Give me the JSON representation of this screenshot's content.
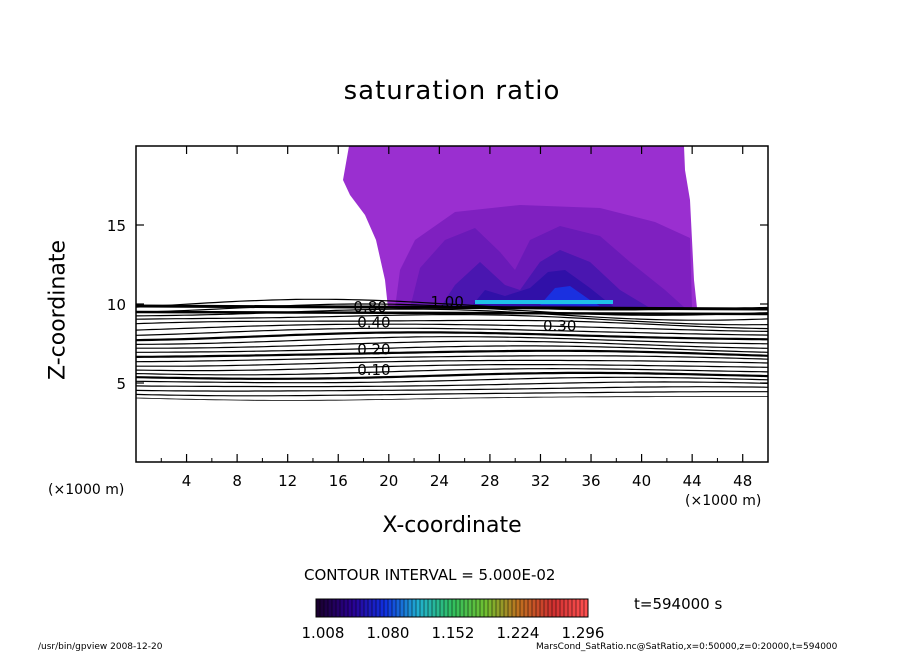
{
  "chart_data": {
    "type": "contour",
    "title": "saturation ratio",
    "xlabel": "X-coordinate",
    "ylabel": "Z-coordinate",
    "x_unit": "(×1000 m)",
    "y_unit": "(×1000 m)",
    "xlim": [
      0,
      50
    ],
    "ylim": [
      0,
      20
    ],
    "xticks": [
      4,
      8,
      12,
      16,
      20,
      24,
      28,
      32,
      36,
      40,
      44,
      48
    ],
    "yticks": [
      5,
      10,
      15
    ],
    "contour_interval_label": "CONTOUR INTERVAL = 5.000E-02",
    "contour_labels": [
      {
        "text": "0.10",
        "x": 17.5,
        "z": 5.5
      },
      {
        "text": "0.20",
        "x": 17.5,
        "z": 6.8
      },
      {
        "text": "0.30",
        "x": 32.2,
        "z": 8.3
      },
      {
        "text": "0.40",
        "x": 17.5,
        "z": 8.5
      },
      {
        "text": "0.80",
        "x": 17.2,
        "z": 9.5
      },
      {
        "text": "1.00",
        "x": 23.3,
        "z": 9.8
      }
    ],
    "colorbar": {
      "ticks": [
        "1.008",
        "1.080",
        "1.152",
        "1.224",
        "1.296"
      ],
      "colors": [
        "#1a0030",
        "#2a0090",
        "#1030e0",
        "#20b0d0",
        "#30c060",
        "#70c030",
        "#c07020",
        "#d03030",
        "#ff5050"
      ]
    },
    "fill_colors": [
      "#9a2fd0",
      "#7f20c0",
      "#6a1ab8",
      "#4a16b0",
      "#3010a8",
      "#1a30e0",
      "#20c0e8"
    ],
    "time_label": "t=594000 s"
  },
  "footer": {
    "left": "/usr/bin/gpview   2008-12-20",
    "right": "MarsCond_SatRatio.nc@SatRatio,x=0:50000,z=0:20000,t=594000"
  }
}
